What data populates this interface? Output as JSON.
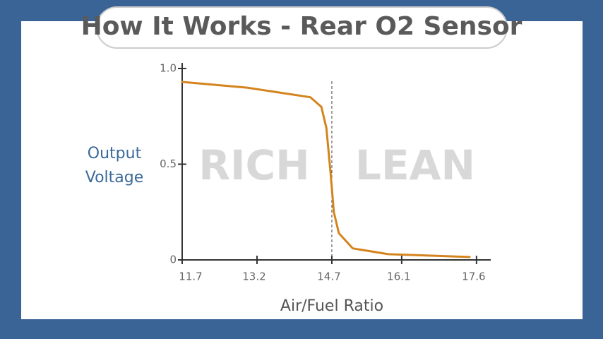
{
  "chart_data": {
    "type": "line",
    "title": "How It Works - Rear O2 Sensor",
    "xlabel": "Air/Fuel Ratio",
    "ylabel": [
      "Output",
      "Voltage"
    ],
    "annotations": [
      "RICH",
      "LEAN"
    ],
    "x": [
      11.7,
      13.0,
      14.27,
      14.49,
      14.59,
      14.67,
      14.74,
      14.84,
      15.12,
      15.83,
      17.46
    ],
    "series": [
      {
        "name": "Output Voltage",
        "color": "#d4841e",
        "values": [
          0.93,
          0.9,
          0.85,
          0.8,
          0.69,
          0.47,
          0.25,
          0.14,
          0.06,
          0.03,
          0.015
        ]
      }
    ],
    "xlim": [
      11.7,
      17.8
    ],
    "xticks": [
      11.7,
      13.2,
      14.7,
      16.1,
      17.6
    ],
    "ylim": [
      0,
      1
    ],
    "yticks": [
      0,
      0.5,
      {
        "value": 1,
        "label": "1.0"
      }
    ]
  }
}
